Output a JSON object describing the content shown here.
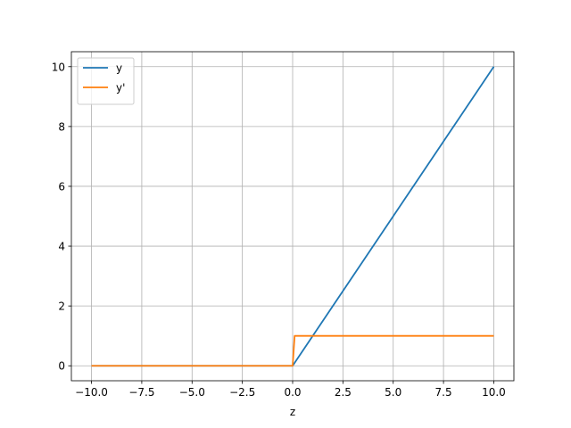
{
  "chart_data": {
    "type": "line",
    "title": "",
    "xlabel": "z",
    "ylabel": "",
    "xlim": [
      -11,
      11
    ],
    "ylim": [
      -0.5,
      10.5
    ],
    "xticks": [
      -10.0,
      -7.5,
      -5.0,
      -2.5,
      0.0,
      2.5,
      5.0,
      7.5,
      10.0
    ],
    "xtick_labels": [
      "−10.0",
      "−7.5",
      "−5.0",
      "−2.5",
      "0.0",
      "2.5",
      "5.0",
      "7.5",
      "10.0"
    ],
    "yticks": [
      0,
      2,
      4,
      6,
      8,
      10
    ],
    "ytick_labels": [
      "0",
      "2",
      "4",
      "6",
      "8",
      "10"
    ],
    "grid": true,
    "legend_position": "top-left",
    "series": [
      {
        "name": "y",
        "color": "#1f77b4",
        "x": [
          -10,
          0,
          10
        ],
        "y": [
          0,
          0,
          10
        ]
      },
      {
        "name": "y'",
        "color": "#ff7f0e",
        "x": [
          -10,
          0,
          0.1,
          10
        ],
        "y": [
          0,
          0,
          1,
          1
        ]
      }
    ]
  }
}
